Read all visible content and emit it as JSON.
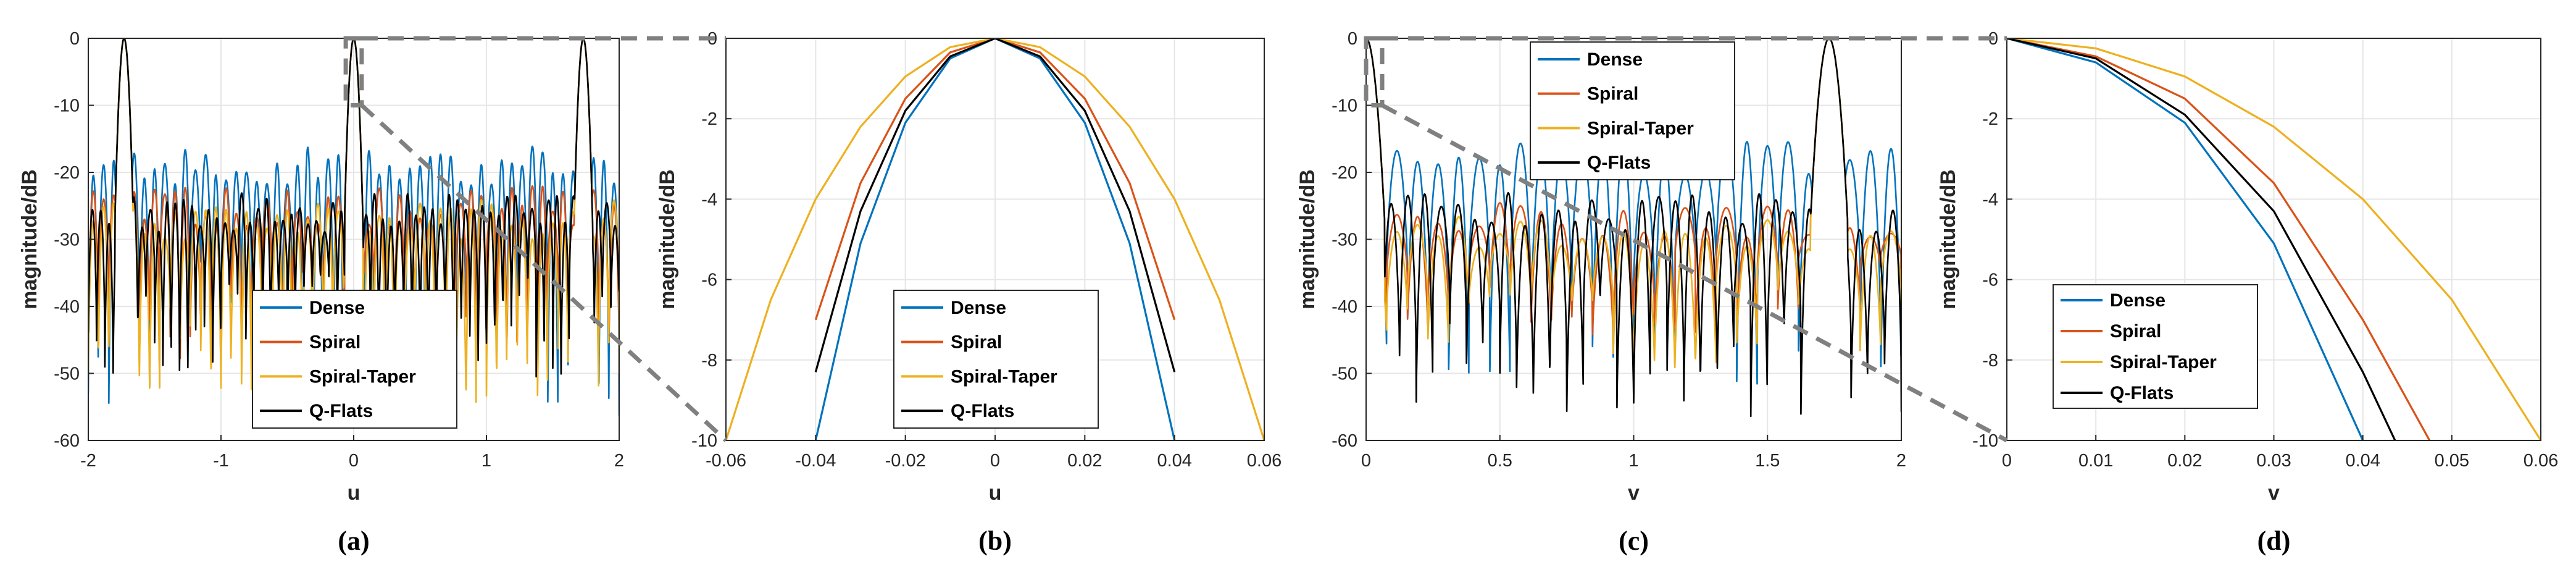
{
  "colors": {
    "Dense": "#0072BD",
    "Spiral": "#D95319",
    "Spiral-Taper": "#EDB120",
    "Q-Flats": "#000000",
    "grid": "#e6e6e6",
    "zoom_guides": "#808080"
  },
  "chart_data": [
    {
      "id": "a",
      "type": "line",
      "panel_label": "(a)",
      "xlabel": "u",
      "ylabel": "magnitude/dB",
      "xlim": [
        -2,
        2
      ],
      "ylim": [
        -60,
        0
      ],
      "xticks": [
        -2,
        -1,
        0,
        1,
        2
      ],
      "xtick_labels": [
        "-2",
        "-1",
        "0",
        "1",
        "2"
      ],
      "yticks": [
        0,
        -10,
        -20,
        -30,
        -40,
        -50,
        -60
      ],
      "ytick_labels": [
        "0",
        "-10",
        "-20",
        "-30",
        "-40",
        "-50",
        "-60"
      ],
      "grid": true,
      "legend_position": "bottom-center",
      "zoom_region": {
        "x": [
          -0.06,
          0.06
        ],
        "y": [
          -10,
          0
        ],
        "zoom_to_panel": "b"
      },
      "series": [
        {
          "name": "Dense",
          "main_lobes": [
            -1.73,
            0,
            1.73
          ],
          "sidelobe_peak_db": -14,
          "sidelobe_floor_db": -60,
          "nulls_per_unit": 13
        },
        {
          "name": "Spiral",
          "main_lobes": [
            -1.73,
            0,
            1.73
          ],
          "sidelobe_peak_db": -20,
          "sidelobe_floor_db": -50,
          "nulls_per_unit": 13
        },
        {
          "name": "Spiral-Taper",
          "main_lobes": [
            -1.73,
            0,
            1.73
          ],
          "sidelobe_peak_db": -22,
          "sidelobe_floor_db": -57,
          "nulls_per_unit": 13
        },
        {
          "name": "Q-Flats",
          "main_lobes": [
            -1.73,
            0,
            1.73
          ],
          "sidelobe_peak_db": -21,
          "sidelobe_floor_db": -51,
          "nulls_per_unit": 16
        }
      ]
    },
    {
      "id": "b",
      "type": "line",
      "panel_label": "(b)",
      "xlabel": "u",
      "ylabel": "magnitude/dB",
      "xlim": [
        -0.06,
        0.06
      ],
      "ylim": [
        -10,
        0
      ],
      "xticks": [
        -0.06,
        -0.04,
        -0.02,
        0,
        0.02,
        0.04,
        0.06
      ],
      "xtick_labels": [
        "-0.06",
        "-0.04",
        "-0.02",
        "0",
        "0.02",
        "0.04",
        "0.06"
      ],
      "yticks": [
        0,
        -2,
        -4,
        -6,
        -8,
        -10
      ],
      "ytick_labels": [
        "0",
        "-2",
        "-4",
        "-6",
        "-8",
        "-10"
      ],
      "grid": true,
      "legend_position": "bottom-right",
      "x": [
        -0.06,
        -0.05,
        -0.04,
        -0.03,
        -0.02,
        -0.01,
        0,
        0.01,
        0.02,
        0.03,
        0.04,
        0.05,
        0.06
      ],
      "series": [
        {
          "name": "Dense",
          "values": [
            null,
            null,
            -10.0,
            -5.1,
            -2.1,
            -0.5,
            0,
            -0.5,
            -2.1,
            -5.1,
            -10.0,
            null,
            null
          ]
        },
        {
          "name": "Spiral",
          "values": [
            null,
            null,
            -7.0,
            -3.6,
            -1.5,
            -0.35,
            0,
            -0.35,
            -1.5,
            -3.6,
            -7.0,
            null,
            null
          ]
        },
        {
          "name": "Spiral-Taper",
          "values": [
            -10.0,
            -6.5,
            -4.0,
            -2.2,
            -0.95,
            -0.22,
            0,
            -0.22,
            -0.95,
            -2.2,
            -4.0,
            -6.5,
            -10.0
          ]
        },
        {
          "name": "Q-Flats",
          "values": [
            null,
            null,
            -8.3,
            -4.3,
            -1.8,
            -0.45,
            0,
            -0.45,
            -1.8,
            -4.3,
            -8.3,
            null,
            null
          ]
        }
      ]
    },
    {
      "id": "c",
      "type": "line",
      "panel_label": "(c)",
      "xlabel": "v",
      "ylabel": "magnitude/dB",
      "xlim": [
        0,
        2
      ],
      "ylim": [
        -60,
        0
      ],
      "xticks": [
        0,
        0.5,
        1,
        1.5,
        2
      ],
      "xtick_labels": [
        "0",
        "0.5",
        "1",
        "1.5",
        "2"
      ],
      "yticks": [
        0,
        -10,
        -20,
        -30,
        -40,
        -50,
        -60
      ],
      "ytick_labels": [
        "0",
        "-10",
        "-20",
        "-30",
        "-40",
        "-50",
        "-60"
      ],
      "grid": true,
      "legend_position": "top-center",
      "zoom_region": {
        "x": [
          0,
          0.06
        ],
        "y": [
          -10,
          0
        ],
        "zoom_to_panel": "d"
      },
      "series": [
        {
          "name": "Dense",
          "main_lobes": [
            0,
            1.73
          ],
          "sidelobe_peak_db": -13,
          "sidelobe_floor_db": -54,
          "nulls_per_unit": 13
        },
        {
          "name": "Spiral",
          "main_lobes": [
            0,
            1.73
          ],
          "sidelobe_peak_db": -22,
          "sidelobe_floor_db": -45,
          "nulls_per_unit": 13
        },
        {
          "name": "Spiral-Taper",
          "main_lobes": [
            0,
            1.73
          ],
          "sidelobe_peak_db": -24,
          "sidelobe_floor_db": -50,
          "nulls_per_unit": 13
        },
        {
          "name": "Q-Flats",
          "main_lobes": [
            0,
            1.73
          ],
          "sidelobe_peak_db": -21,
          "sidelobe_floor_db": -57,
          "nulls_per_unit": 16
        }
      ]
    },
    {
      "id": "d",
      "type": "line",
      "panel_label": "(d)",
      "xlabel": "v",
      "ylabel": "magnitude/dB",
      "xlim": [
        0,
        0.06
      ],
      "ylim": [
        -10,
        0
      ],
      "xticks": [
        0,
        0.01,
        0.02,
        0.03,
        0.04,
        0.05,
        0.06
      ],
      "xtick_labels": [
        "0",
        "0.01",
        "0.02",
        "0.03",
        "0.04",
        "0.05",
        "0.06"
      ],
      "yticks": [
        0,
        -2,
        -4,
        -6,
        -8,
        -10
      ],
      "ytick_labels": [
        "0",
        "-2",
        "-4",
        "-6",
        "-8",
        "-10"
      ],
      "grid": true,
      "legend_position": "bottom-left",
      "x": [
        0,
        0.01,
        0.02,
        0.03,
        0.04,
        0.05,
        0.06
      ],
      "series": [
        {
          "name": "Dense",
          "values": [
            0,
            -0.6,
            -2.1,
            -5.1,
            -10.0,
            null,
            null
          ]
        },
        {
          "name": "Spiral",
          "values": [
            0,
            -0.45,
            -1.5,
            -3.6,
            -7.0,
            -11.0,
            null
          ]
        },
        {
          "name": "Spiral-Taper",
          "values": [
            0,
            -0.25,
            -0.95,
            -2.2,
            -4.0,
            -6.5,
            -10.0
          ]
        },
        {
          "name": "Q-Flats",
          "values": [
            0,
            -0.5,
            -1.9,
            -4.3,
            -8.3,
            -13.0,
            null
          ]
        }
      ]
    }
  ]
}
